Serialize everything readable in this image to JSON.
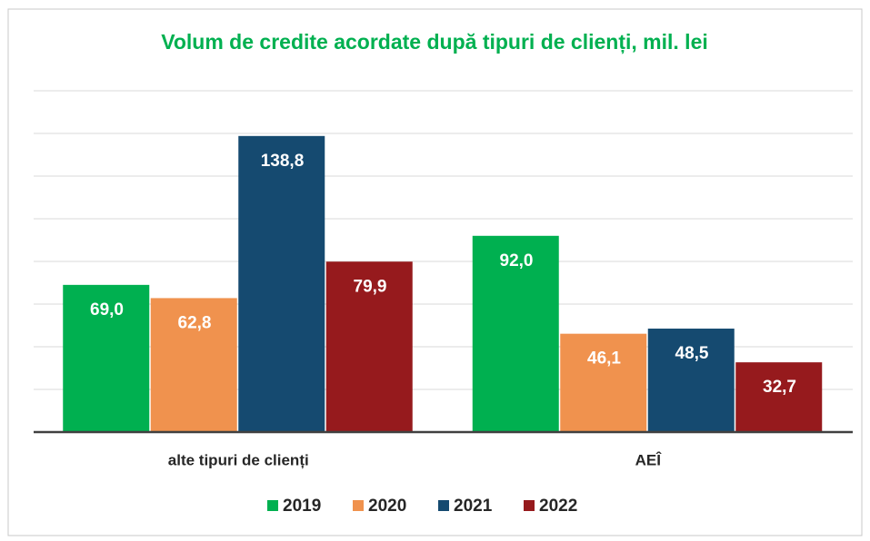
{
  "chart_data": {
    "type": "bar",
    "title": "Volum de credite acordate după tipuri de clienți, mil. lei",
    "categories": [
      "alte tipuri de clienți",
      "AEÎ"
    ],
    "series": [
      {
        "name": "2019",
        "color": "#00b050",
        "values": [
          69.0,
          92.0
        ],
        "value_labels": [
          "69,0",
          "92,0"
        ]
      },
      {
        "name": "2020",
        "color": "#f0924e",
        "values": [
          62.8,
          46.1
        ],
        "value_labels": [
          "62,8",
          "46,1"
        ]
      },
      {
        "name": "2021",
        "color": "#154a70",
        "values": [
          138.8,
          48.5
        ],
        "value_labels": [
          "138,8",
          "48,5"
        ]
      },
      {
        "name": "2022",
        "color": "#961a1d",
        "values": [
          79.9,
          32.7
        ],
        "value_labels": [
          "79,9",
          "32,7"
        ]
      }
    ],
    "ylim": [
      0,
      160
    ],
    "yticks": [
      0,
      20,
      40,
      60,
      80,
      100,
      120,
      140,
      160
    ],
    "grid": true,
    "legend": "bottom"
  }
}
